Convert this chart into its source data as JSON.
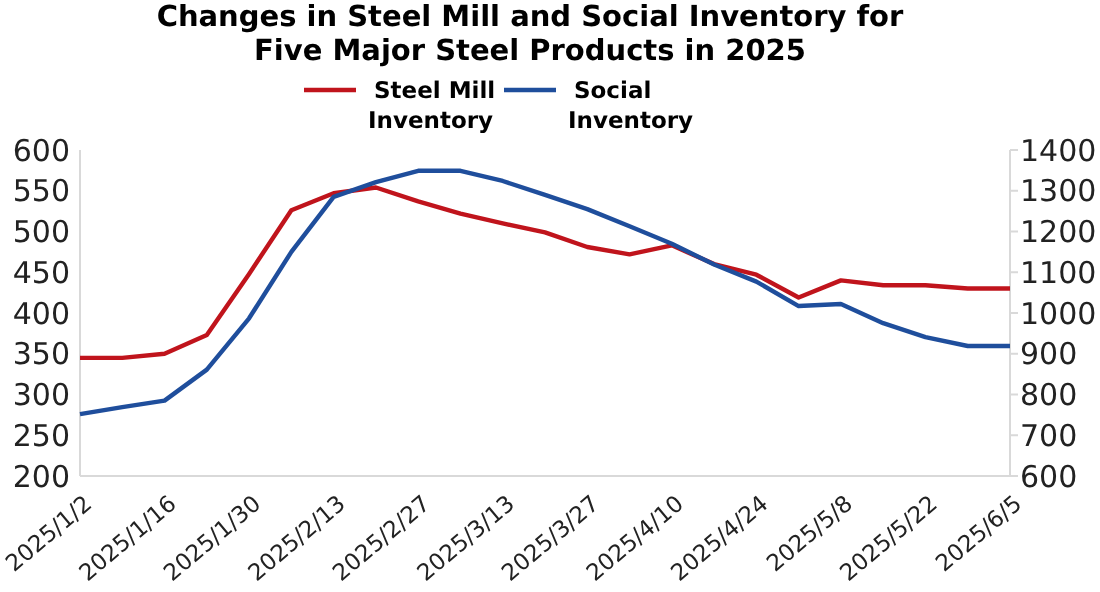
{
  "chart_data": {
    "type": "line",
    "title": "Changes in Steel Mill and Social Inventory for Five Major Steel Products in 2025",
    "categories": [
      "2025/1/2",
      null,
      "2025/1/16",
      null,
      "2025/1/30",
      null,
      "2025/2/13",
      null,
      "2025/2/27",
      null,
      "2025/3/13",
      null,
      "2025/3/27",
      null,
      "2025/4/10",
      null,
      "2025/4/24",
      null,
      "2025/5/8",
      null,
      "2025/5/22",
      null,
      "2025/6/5"
    ],
    "series": [
      {
        "name": "Steel Mill Inventory",
        "color": "#c0141c",
        "values": [
          345,
          345,
          350,
          373,
          448,
          526,
          547,
          554,
          537,
          522,
          510,
          499,
          481,
          472,
          483,
          460,
          447,
          419,
          440,
          434,
          434,
          430,
          430
        ]
      },
      {
        "name": "Social Inventory",
        "color": "#1f4e9c",
        "axis": "y2",
        "values": [
          752,
          769,
          785,
          861,
          987,
          1150,
          1285,
          1321,
          1349,
          1349,
          1324,
          1290,
          1255,
          1213,
          1170,
          1119,
          1077,
          1017,
          1022,
          975,
          941,
          919,
          919
        ]
      }
    ],
    "ylim": [
      200,
      600
    ],
    "yticks": [
      200,
      250,
      300,
      350,
      400,
      450,
      500,
      550,
      600
    ],
    "y2lim": [
      600,
      1400
    ],
    "y2ticks": [
      600,
      700,
      800,
      900,
      1000,
      1100,
      1200,
      1300,
      1400
    ],
    "legend": "top",
    "grid": false
  }
}
